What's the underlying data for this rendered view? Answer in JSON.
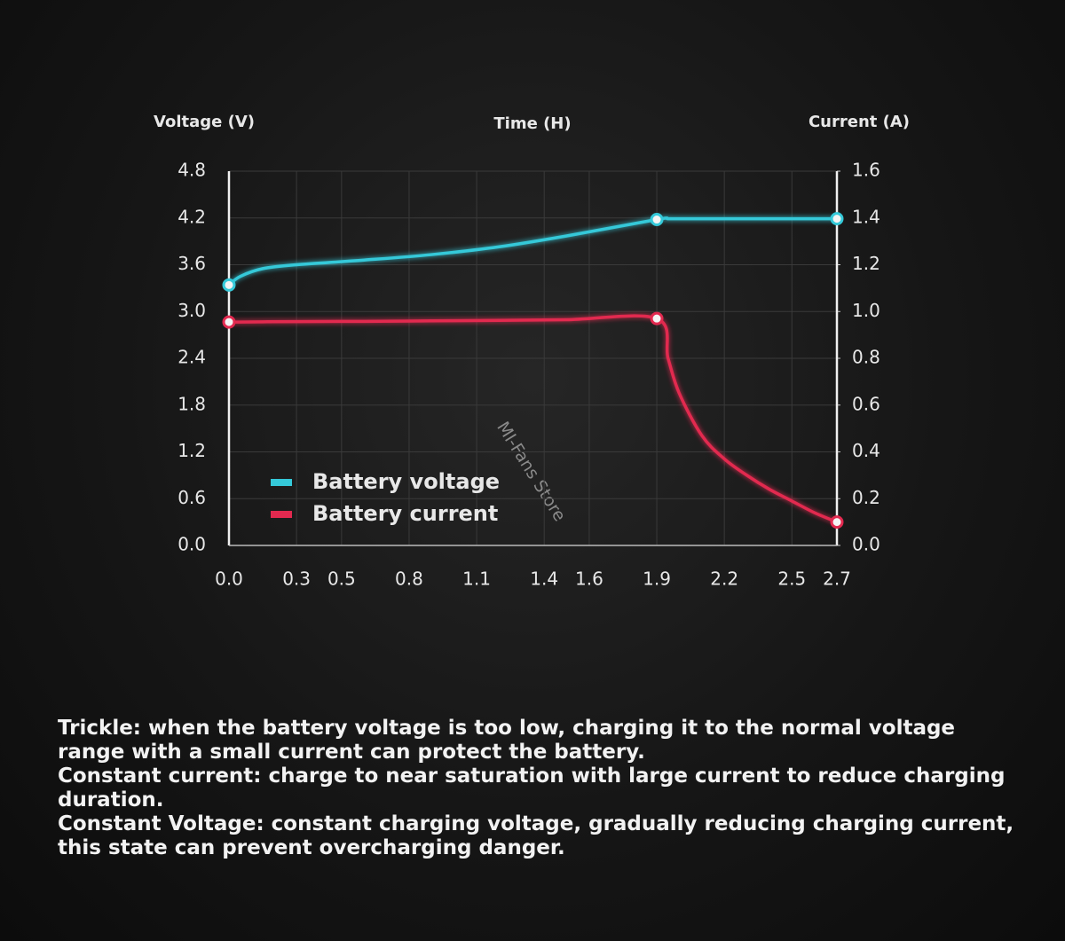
{
  "chart_data": {
    "type": "line",
    "y_label": "Voltage (V)",
    "x_label": "Time (H)",
    "y2_label": "Current (A)",
    "x": [
      0,
      0.05,
      0.15,
      0.3,
      0.6,
      0.9,
      1.2,
      1.5,
      1.9,
      1.95,
      2.0,
      2.1,
      2.2,
      2.3,
      2.4,
      2.5,
      2.6,
      2.7
    ],
    "series": [
      {
        "name": "Battery voltage",
        "color": "#35c9d9",
        "values": [
          3.34,
          3.45,
          3.55,
          3.6,
          3.66,
          3.73,
          3.83,
          3.97,
          4.18,
          4.19,
          4.19,
          4.19,
          4.19,
          4.19,
          4.19,
          4.19,
          4.19,
          4.19
        ]
      },
      {
        "name": "Battery current",
        "color": "#e2294f",
        "axis": "y2",
        "values": [
          0.955,
          0.955,
          0.956,
          0.957,
          0.958,
          0.96,
          0.962,
          0.965,
          0.97,
          0.8,
          0.65,
          0.47,
          0.37,
          0.3,
          0.24,
          0.19,
          0.14,
          0.1
        ]
      }
    ],
    "xlim": [
      0,
      2.7
    ],
    "xticks": [
      {
        "value": 0,
        "label": "0.0"
      },
      0.3,
      0.5,
      0.8,
      1.1,
      1.4,
      1.6,
      1.9,
      2.2,
      2.5,
      2.7
    ],
    "ylim": [
      0,
      4.8
    ],
    "yticks": [
      {
        "value": 0,
        "label": "0.0"
      },
      0.6,
      1.2,
      1.8,
      2.4,
      {
        "value": 3,
        "label": "3.0"
      },
      3.6,
      4.2,
      4.8
    ],
    "y2lim": [
      0,
      1.6
    ],
    "y2ticks": [
      {
        "value": 0,
        "label": "0.0"
      },
      0.2,
      0.4,
      0.6,
      0.8,
      {
        "value": 1,
        "label": "1.0"
      },
      1.2,
      1.4,
      1.6
    ],
    "grid": true,
    "legend": "lower-left",
    "watermark": "MI-Fans Store"
  },
  "notes": [
    "Trickle: when the battery voltage is too low, charging it to the normal voltage range with a small current can protect the battery.",
    "Constant current: charge to near saturation with large current to reduce charging duration.",
    "Constant Voltage: constant charging voltage, gradually reducing charging current, this state can prevent overcharging danger."
  ]
}
